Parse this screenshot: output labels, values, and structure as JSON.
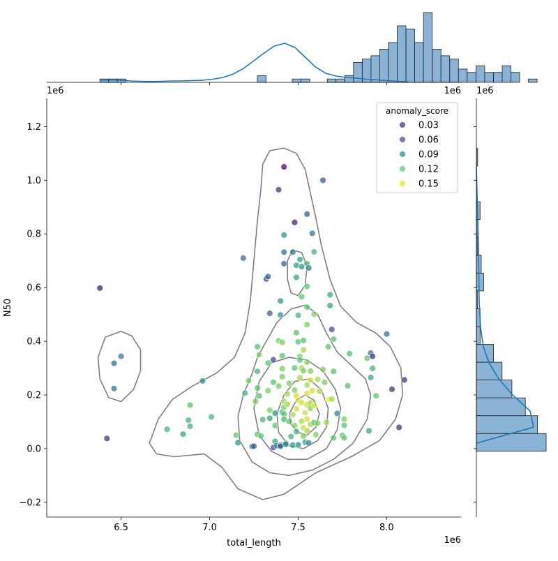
{
  "chart_data": {
    "type": "scatter",
    "title": "",
    "xlabel": "total_length",
    "ylabel": "N50",
    "x_offset_text": "1e6",
    "y_offset_text": "1e6",
    "xlim": [
      6.08,
      8.42
    ],
    "ylim": [
      -0.255,
      1.305
    ],
    "x_ticks": [
      6.5,
      7.0,
      7.5,
      8.0
    ],
    "x_tick_labels": [
      "6.5",
      "7.0",
      "7.5",
      "8.0"
    ],
    "y_ticks": [
      -0.2,
      0.0,
      0.2,
      0.4,
      0.6,
      0.8,
      1.0,
      1.2
    ],
    "y_tick_labels": [
      "−0.2",
      "0.0",
      "0.2",
      "0.4",
      "0.6",
      "0.8",
      "1.0",
      "1.2"
    ],
    "grid": false,
    "legend": {
      "title": "anomaly_score",
      "placement": "top-right",
      "entries": [
        {
          "label": "0.03",
          "color": "#472d7b"
        },
        {
          "label": "0.06",
          "color": "#3b528b"
        },
        {
          "label": "0.09",
          "color": "#21918c"
        },
        {
          "label": "0.12",
          "color": "#5ec962"
        },
        {
          "label": "0.15",
          "color": "#e1e519"
        }
      ]
    },
    "colormap": "viridis",
    "color_range": [
      0.02,
      0.16
    ],
    "points": [
      [
        6.38,
        0.598,
        0.03
      ],
      [
        6.42,
        0.038,
        0.04
      ],
      [
        6.46,
        0.318,
        0.07
      ],
      [
        6.46,
        0.224,
        0.07
      ],
      [
        6.5,
        0.344,
        0.08
      ],
      [
        6.76,
        0.072,
        0.11
      ],
      [
        6.85,
        0.054,
        0.1
      ],
      [
        6.88,
        0.106,
        0.11
      ],
      [
        6.89,
        0.162,
        0.12
      ],
      [
        6.89,
        0.083,
        0.11
      ],
      [
        6.96,
        0.252,
        0.09
      ],
      [
        7.01,
        0.118,
        0.11
      ],
      [
        7.15,
        0.05,
        0.12
      ],
      [
        7.16,
        0.022,
        0.09
      ],
      [
        7.19,
        0.71,
        0.07
      ],
      [
        7.2,
        0.207,
        0.11
      ],
      [
        7.22,
        0.253,
        0.13
      ],
      [
        7.24,
        0.008,
        0.06
      ],
      [
        7.25,
        0.009,
        0.06
      ],
      [
        7.26,
        0.176,
        0.13
      ],
      [
        7.27,
        0.38,
        0.12
      ],
      [
        7.27,
        0.288,
        0.11
      ],
      [
        7.27,
        0.226,
        0.12
      ],
      [
        7.27,
        0.053,
        0.12
      ],
      [
        7.28,
        0.35,
        0.13
      ],
      [
        7.28,
        0.197,
        0.12
      ],
      [
        7.29,
        0.047,
        0.12
      ],
      [
        7.3,
        0.108,
        0.11
      ],
      [
        7.32,
        0.632,
        0.05
      ],
      [
        7.33,
        0.641,
        0.06
      ],
      [
        7.33,
        0.319,
        0.12
      ],
      [
        7.33,
        0.216,
        0.13
      ],
      [
        7.34,
        0.143,
        0.13
      ],
      [
        7.34,
        0.113,
        0.1
      ],
      [
        7.34,
        0.504,
        0.06
      ],
      [
        7.36,
        0.331,
        0.05
      ],
      [
        7.36,
        0.247,
        0.12
      ],
      [
        7.36,
        0.004,
        0.05
      ],
      [
        7.37,
        0.132,
        0.09
      ],
      [
        7.37,
        0.027,
        0.1
      ],
      [
        7.37,
        0.086,
        0.12
      ],
      [
        7.38,
        0.011,
        0.08
      ],
      [
        7.39,
        0.965,
        0.04
      ],
      [
        7.39,
        0.402,
        0.13
      ],
      [
        7.39,
        0.233,
        0.13
      ],
      [
        7.4,
        0.013,
        0.07
      ],
      [
        7.4,
        0.009,
        0.06
      ],
      [
        7.4,
        0.55,
        0.09
      ],
      [
        7.4,
        0.498,
        0.09
      ],
      [
        7.41,
        0.396,
        0.13
      ],
      [
        7.41,
        0.346,
        0.12
      ],
      [
        7.41,
        0.298,
        0.13
      ],
      [
        7.41,
        0.268,
        0.13
      ],
      [
        7.41,
        0.136,
        0.11
      ],
      [
        7.42,
        1.05,
        0.02
      ],
      [
        7.42,
        0.796,
        0.09
      ],
      [
        7.42,
        0.732,
        0.07
      ],
      [
        7.42,
        0.689,
        0.06
      ],
      [
        7.42,
        0.176,
        0.14
      ],
      [
        7.42,
        0.154,
        0.13
      ],
      [
        7.42,
        0.129,
        0.12
      ],
      [
        7.42,
        0.109,
        0.11
      ],
      [
        7.43,
        0.02,
        0.1
      ],
      [
        7.43,
        0.016,
        0.08
      ],
      [
        7.44,
        0.204,
        0.14
      ],
      [
        7.44,
        0.165,
        0.14
      ],
      [
        7.45,
        0.243,
        0.13
      ],
      [
        7.45,
        0.101,
        0.12
      ],
      [
        7.46,
        0.045,
        0.11
      ],
      [
        7.47,
        0.732,
        0.07
      ],
      [
        7.47,
        0.127,
        0.14
      ],
      [
        7.47,
        0.013,
        0.09
      ],
      [
        7.48,
        0.843,
        0.03
      ],
      [
        7.48,
        0.301,
        0.12
      ],
      [
        7.48,
        0.218,
        0.13
      ],
      [
        7.48,
        0.086,
        0.13
      ],
      [
        7.49,
        0.683,
        0.1
      ],
      [
        7.49,
        0.638,
        0.1
      ],
      [
        7.49,
        0.432,
        0.12
      ],
      [
        7.49,
        0.197,
        0.15
      ],
      [
        7.49,
        0.149,
        0.15
      ],
      [
        7.49,
        0.063,
        0.11
      ],
      [
        7.5,
        0.497,
        0.11
      ],
      [
        7.5,
        0.398,
        0.12
      ],
      [
        7.5,
        0.18,
        0.15
      ],
      [
        7.5,
        0.014,
        0.09
      ],
      [
        7.51,
        0.705,
        0.1
      ],
      [
        7.51,
        0.343,
        0.13
      ],
      [
        7.51,
        0.33,
        0.12
      ],
      [
        7.51,
        0.264,
        0.14
      ],
      [
        7.52,
        0.678,
        0.09
      ],
      [
        7.52,
        0.566,
        0.12
      ],
      [
        7.52,
        0.3,
        0.14
      ],
      [
        7.52,
        0.171,
        0.15
      ],
      [
        7.52,
        0.102,
        0.14
      ],
      [
        7.53,
        0.403,
        0.12
      ],
      [
        7.53,
        0.368,
        0.14
      ],
      [
        7.53,
        0.29,
        0.13
      ],
      [
        7.53,
        0.078,
        0.15
      ],
      [
        7.53,
        0.046,
        0.13
      ],
      [
        7.54,
        0.134,
        0.15
      ],
      [
        7.54,
        0.024,
        0.1
      ],
      [
        7.55,
        0.874,
        0.06
      ],
      [
        7.55,
        0.689,
        0.11
      ],
      [
        7.55,
        0.604,
        0.12
      ],
      [
        7.55,
        0.527,
        0.12
      ],
      [
        7.55,
        0.462,
        0.13
      ],
      [
        7.55,
        0.322,
        0.13
      ],
      [
        7.55,
        0.237,
        0.14
      ],
      [
        7.55,
        0.206,
        0.15
      ],
      [
        7.55,
        0.163,
        0.15
      ],
      [
        7.55,
        0.11,
        0.15
      ],
      [
        7.55,
        0.067,
        0.14
      ],
      [
        7.56,
        0.673,
        0.08
      ],
      [
        7.56,
        0.021,
        0.08
      ],
      [
        7.57,
        0.289,
        0.13
      ],
      [
        7.57,
        0.255,
        0.15
      ],
      [
        7.57,
        0.171,
        0.14
      ],
      [
        7.57,
        0.15,
        0.13
      ],
      [
        7.57,
        0.09,
        0.14
      ],
      [
        7.58,
        0.802,
        0.07
      ],
      [
        7.58,
        0.216,
        0.15
      ],
      [
        7.59,
        0.733,
        0.11
      ],
      [
        7.59,
        0.501,
        0.13
      ],
      [
        7.59,
        0.16,
        0.15
      ],
      [
        7.59,
        0.097,
        0.12
      ],
      [
        7.6,
        0.052,
        0.13
      ],
      [
        7.61,
        0.258,
        0.14
      ],
      [
        7.61,
        0.095,
        0.13
      ],
      [
        7.62,
        0.214,
        0.14
      ],
      [
        7.64,
        1.0,
        0.06
      ],
      [
        7.64,
        0.295,
        0.13
      ],
      [
        7.65,
        0.247,
        0.13
      ],
      [
        7.66,
        0.098,
        0.14
      ],
      [
        7.67,
        0.38,
        0.12
      ],
      [
        7.67,
        0.183,
        0.16
      ],
      [
        7.68,
        0.573,
        0.1
      ],
      [
        7.68,
        0.533,
        0.1
      ],
      [
        7.69,
        0.444,
        0.05
      ],
      [
        7.69,
        0.185,
        0.14
      ],
      [
        7.7,
        0.408,
        0.12
      ],
      [
        7.7,
        0.288,
        0.12
      ],
      [
        7.7,
        0.04,
        0.12
      ],
      [
        7.72,
        0.131,
        0.08
      ],
      [
        7.75,
        0.049,
        0.12
      ],
      [
        7.76,
        0.11,
        0.13
      ],
      [
        7.76,
        0.087,
        0.12
      ],
      [
        7.76,
        0.04,
        0.12
      ],
      [
        7.78,
        0.234,
        0.12
      ],
      [
        7.79,
        0.354,
        0.12
      ],
      [
        7.89,
        0.337,
        0.12
      ],
      [
        7.9,
        0.066,
        0.1
      ],
      [
        7.91,
        0.356,
        0.07
      ],
      [
        7.91,
        0.265,
        0.1
      ],
      [
        7.92,
        0.299,
        0.11
      ],
      [
        7.92,
        0.344,
        0.04
      ],
      [
        7.94,
        0.197,
        0.12
      ],
      [
        8.0,
        0.427,
        0.07
      ],
      [
        8.03,
        0.221,
        0.04
      ],
      [
        8.07,
        0.079,
        0.04
      ],
      [
        8.1,
        0.256,
        0.04
      ]
    ],
    "kde_contours": [
      [
        [
          6.5,
          0.437
        ],
        [
          6.56,
          0.42
        ],
        [
          6.61,
          0.368
        ],
        [
          6.61,
          0.29
        ],
        [
          6.57,
          0.22
        ],
        [
          6.5,
          0.175
        ],
        [
          6.43,
          0.19
        ],
        [
          6.38,
          0.26
        ],
        [
          6.37,
          0.34
        ],
        [
          6.41,
          0.415
        ]
      ],
      [
        [
          6.79,
          0.183
        ],
        [
          6.9,
          0.232
        ],
        [
          7.04,
          0.282
        ],
        [
          7.14,
          0.34
        ],
        [
          7.2,
          0.43
        ],
        [
          7.23,
          0.55
        ],
        [
          7.25,
          0.7
        ],
        [
          7.27,
          0.85
        ],
        [
          7.29,
          0.97
        ],
        [
          7.3,
          1.06
        ],
        [
          7.34,
          1.11
        ],
        [
          7.42,
          1.12
        ],
        [
          7.49,
          1.1
        ],
        [
          7.54,
          1.04
        ],
        [
          7.57,
          0.95
        ],
        [
          7.6,
          0.86
        ],
        [
          7.63,
          0.76
        ],
        [
          7.68,
          0.63
        ],
        [
          7.74,
          0.53
        ],
        [
          7.83,
          0.47
        ],
        [
          7.94,
          0.43
        ],
        [
          8.02,
          0.38
        ],
        [
          8.08,
          0.3
        ],
        [
          8.09,
          0.2
        ],
        [
          8.05,
          0.11
        ],
        [
          7.96,
          0.03
        ],
        [
          7.8,
          -0.03
        ],
        [
          7.6,
          -0.09
        ],
        [
          7.42,
          -0.17
        ],
        [
          7.3,
          -0.19
        ],
        [
          7.16,
          -0.15
        ],
        [
          7.07,
          -0.07
        ],
        [
          6.97,
          -0.02
        ],
        [
          6.8,
          -0.03
        ],
        [
          6.7,
          -0.02
        ],
        [
          6.66,
          0.02
        ],
        [
          6.71,
          0.11
        ]
      ],
      [
        [
          7.47,
          0.74
        ],
        [
          7.52,
          0.73
        ],
        [
          7.55,
          0.68
        ],
        [
          7.54,
          0.61
        ],
        [
          7.5,
          0.57
        ],
        [
          7.46,
          0.58
        ],
        [
          7.44,
          0.63
        ],
        [
          7.44,
          0.7
        ]
      ],
      [
        [
          7.32,
          0.4
        ],
        [
          7.38,
          0.47
        ],
        [
          7.46,
          0.52
        ],
        [
          7.54,
          0.535
        ],
        [
          7.61,
          0.5
        ],
        [
          7.66,
          0.43
        ],
        [
          7.72,
          0.36
        ],
        [
          7.8,
          0.31
        ],
        [
          7.88,
          0.26
        ],
        [
          7.91,
          0.2
        ],
        [
          7.89,
          0.11
        ],
        [
          7.81,
          0.02
        ],
        [
          7.7,
          -0.04
        ],
        [
          7.58,
          -0.08
        ],
        [
          7.45,
          -0.1
        ],
        [
          7.34,
          -0.09
        ],
        [
          7.24,
          -0.05
        ],
        [
          7.17,
          0.03
        ],
        [
          7.16,
          0.12
        ],
        [
          7.19,
          0.2
        ],
        [
          7.24,
          0.28
        ],
        [
          7.27,
          0.34
        ]
      ],
      [
        [
          7.28,
          0.25
        ],
        [
          7.35,
          0.32
        ],
        [
          7.45,
          0.34
        ],
        [
          7.55,
          0.33
        ],
        [
          7.64,
          0.29
        ],
        [
          7.71,
          0.22
        ],
        [
          7.74,
          0.15
        ],
        [
          7.72,
          0.07
        ],
        [
          7.66,
          0.0
        ],
        [
          7.55,
          -0.04
        ],
        [
          7.44,
          -0.04
        ],
        [
          7.35,
          -0.01
        ],
        [
          7.28,
          0.05
        ],
        [
          7.25,
          0.15
        ]
      ],
      [
        [
          7.38,
          0.13
        ],
        [
          7.42,
          0.2
        ],
        [
          7.48,
          0.25
        ],
        [
          7.56,
          0.26
        ],
        [
          7.63,
          0.22
        ],
        [
          7.67,
          0.15
        ],
        [
          7.66,
          0.08
        ],
        [
          7.61,
          0.03
        ],
        [
          7.53,
          0.0
        ],
        [
          7.45,
          0.01
        ],
        [
          7.39,
          0.06
        ]
      ],
      [
        [
          7.45,
          0.13
        ],
        [
          7.49,
          0.18
        ],
        [
          7.54,
          0.2
        ],
        [
          7.59,
          0.18
        ],
        [
          7.62,
          0.13
        ],
        [
          7.6,
          0.08
        ],
        [
          7.55,
          0.05
        ],
        [
          7.5,
          0.06
        ],
        [
          7.46,
          0.09
        ]
      ]
    ],
    "x_hist": {
      "bin_start": 6.38,
      "bin_width": 0.0494,
      "counts": [
        1,
        1,
        1,
        0,
        0,
        0,
        0,
        0,
        0,
        0,
        0,
        0,
        0,
        0,
        0,
        0,
        0,
        0,
        2,
        0,
        0,
        0,
        1,
        1,
        0,
        0,
        1,
        1,
        2,
        6,
        7,
        8,
        10,
        12,
        17,
        16,
        12,
        21,
        10,
        8,
        7,
        4,
        3,
        5,
        3,
        3,
        5,
        3,
        0,
        1
      ],
      "kde_y_fraction": [
        0.03,
        0.035,
        0.03,
        0.02,
        0.015,
        0.012,
        0.015,
        0.02,
        0.02,
        0.025,
        0.03,
        0.045,
        0.07,
        0.12,
        0.2,
        0.31,
        0.42,
        0.52,
        0.56,
        0.5,
        0.36,
        0.22,
        0.13,
        0.09,
        0.07,
        0.06,
        0.045,
        0.035,
        0.025,
        0.015,
        0.01
      ]
    },
    "y_hist": {
      "bin_start": -0.01,
      "bin_width": 0.0664,
      "counts": [
        57,
        50,
        40,
        29,
        21,
        14,
        3,
        3,
        1,
        6,
        4,
        1,
        1,
        3,
        0,
        0,
        1
      ]
    }
  }
}
